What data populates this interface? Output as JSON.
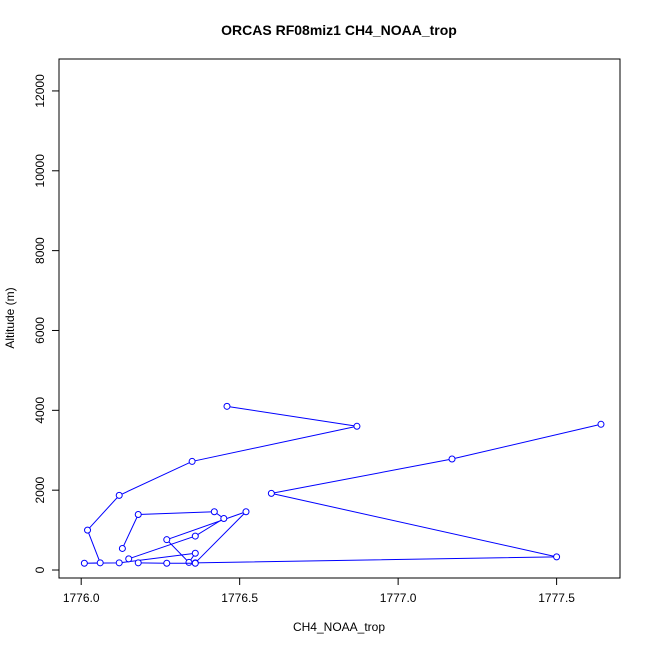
{
  "chart_data": {
    "type": "line",
    "title": "ORCAS RF08miz1 CH4_NOAA_trop",
    "xlabel": "CH4_NOAA_trop",
    "ylabel": "Altitude (m)",
    "xlim": [
      1775.93,
      1777.7
    ],
    "ylim": [
      -200,
      12800
    ],
    "xticks": [
      1776.0,
      1776.5,
      1777.0,
      1777.5
    ],
    "xtick_labels": [
      "1776.0",
      "1776.5",
      "1777.0",
      "1777.5"
    ],
    "yticks": [
      0,
      2000,
      4000,
      6000,
      8000,
      10000,
      12000
    ],
    "ytick_labels": [
      "0",
      "2000",
      "4000",
      "6000",
      "8000",
      "10000",
      "12000"
    ],
    "grid": false,
    "line_color": "#0000ff",
    "series": [
      {
        "points": [
          {
            "x": 1776.46,
            "y": 4100
          },
          {
            "x": 1776.87,
            "y": 3600
          },
          {
            "x": 1776.35,
            "y": 2720
          },
          {
            "x": 1776.12,
            "y": 1870
          },
          {
            "x": 1776.02,
            "y": 1000
          },
          {
            "x": 1776.06,
            "y": 180
          },
          {
            "x": 1776.01,
            "y": 170
          },
          {
            "x": 1776.12,
            "y": 180
          },
          {
            "x": 1776.36,
            "y": 420
          },
          {
            "x": 1776.34,
            "y": 190
          },
          {
            "x": 1776.27,
            "y": 760
          },
          {
            "x": 1776.52,
            "y": 1460
          },
          {
            "x": 1776.36,
            "y": 180
          },
          {
            "x": 1777.5,
            "y": 330
          },
          {
            "x": 1776.6,
            "y": 1920
          },
          {
            "x": 1777.17,
            "y": 2780
          },
          {
            "x": 1777.64,
            "y": 3650
          }
        ]
      },
      {
        "points": [
          {
            "x": 1776.18,
            "y": 180
          },
          {
            "x": 1776.27,
            "y": 170
          },
          {
            "x": 1776.36,
            "y": 170
          }
        ]
      },
      {
        "points": [
          {
            "x": 1776.13,
            "y": 540
          },
          {
            "x": 1776.18,
            "y": 1390
          },
          {
            "x": 1776.42,
            "y": 1460
          },
          {
            "x": 1776.45,
            "y": 1290
          },
          {
            "x": 1776.36,
            "y": 850
          },
          {
            "x": 1776.15,
            "y": 280
          }
        ]
      }
    ]
  }
}
